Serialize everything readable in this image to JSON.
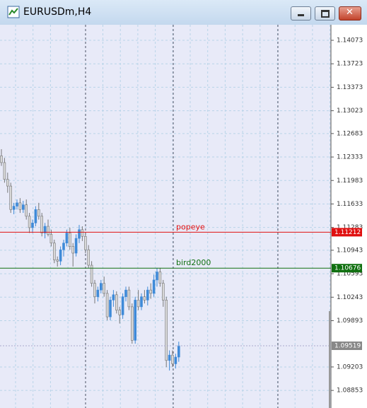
{
  "window": {
    "title": "EURUSDm,H4"
  },
  "chart_data": {
    "type": "candlestick",
    "open": [
      1.1235,
      1.1225,
      1.12,
      1.119,
      1.1155,
      1.116,
      1.1165,
      1.1155,
      1.1162,
      1.1145,
      1.1128,
      1.1135,
      1.1155,
      1.1145,
      1.112,
      1.113,
      1.1118,
      1.1105,
      1.108,
      1.1078,
      1.1095,
      1.1105,
      1.112,
      1.11,
      1.109,
      1.1112,
      1.1125,
      1.1115,
      1.1095,
      1.1072,
      1.1045,
      1.1025,
      1.1035,
      1.1045,
      1.103,
      1.0995,
      1.102,
      1.1028,
      1.1005,
      1.0998,
      1.1025,
      1.1035,
      1.101,
      1.096,
      1.102,
      1.101,
      1.1025,
      1.102,
      1.1035,
      1.103,
      1.105,
      1.1062,
      1.1045,
      1.102,
      1.093,
      1.0938,
      1.0925,
      1.0935
    ],
    "high": [
      1.1245,
      1.1232,
      1.121,
      1.1195,
      1.1165,
      1.117,
      1.1172,
      1.1168,
      1.117,
      1.115,
      1.114,
      1.116,
      1.1165,
      1.115,
      1.1135,
      1.114,
      1.1125,
      1.111,
      1.1085,
      1.11,
      1.111,
      1.1125,
      1.1128,
      1.1105,
      1.1118,
      1.1132,
      1.113,
      1.112,
      1.1102,
      1.1078,
      1.105,
      1.104,
      1.105,
      1.1055,
      1.1035,
      1.1025,
      1.1035,
      1.1033,
      1.101,
      1.103,
      1.104,
      1.104,
      1.1015,
      1.1025,
      1.1035,
      1.103,
      1.1035,
      1.104,
      1.1045,
      1.1058,
      1.1068,
      1.1068,
      1.105,
      1.1025,
      1.0945,
      1.0945,
      1.094,
      1.0958
    ],
    "low": [
      1.122,
      1.1195,
      1.118,
      1.115,
      1.1148,
      1.1155,
      1.115,
      1.115,
      1.114,
      1.112,
      1.112,
      1.113,
      1.114,
      1.1115,
      1.1112,
      1.1115,
      1.11,
      1.1075,
      1.107,
      1.1072,
      1.1085,
      1.11,
      1.1095,
      1.107,
      1.1085,
      1.1105,
      1.1108,
      1.109,
      1.1068,
      1.104,
      1.1015,
      1.1018,
      1.103,
      1.1025,
      1.099,
      1.099,
      1.101,
      1.1,
      1.0985,
      1.0992,
      1.1018,
      1.1005,
      1.0955,
      1.0955,
      1.1005,
      1.1005,
      1.1015,
      1.1012,
      1.1022,
      1.1025,
      1.104,
      1.104,
      1.101,
      1.092,
      1.0915,
      1.092,
      1.0918,
      1.0928
    ],
    "close": [
      1.1225,
      1.12,
      1.119,
      1.1155,
      1.116,
      1.1165,
      1.1155,
      1.1162,
      1.1145,
      1.1128,
      1.1135,
      1.1155,
      1.1145,
      1.112,
      1.113,
      1.1118,
      1.1105,
      1.108,
      1.1078,
      1.1095,
      1.1105,
      1.112,
      1.11,
      1.109,
      1.1112,
      1.1125,
      1.1115,
      1.1095,
      1.1072,
      1.1045,
      1.1025,
      1.1035,
      1.1045,
      1.103,
      1.0995,
      1.102,
      1.1028,
      1.1005,
      1.0998,
      1.1025,
      1.1035,
      1.101,
      1.096,
      1.102,
      1.101,
      1.1025,
      1.102,
      1.1035,
      1.103,
      1.105,
      1.1062,
      1.1045,
      1.102,
      1.093,
      1.0938,
      1.0925,
      1.0935,
      1.0952
    ],
    "up_color": "#3f8ad8",
    "down_color": "#d8d8d8",
    "ylim": [
      1.08591,
      1.14305
    ],
    "yticks": [
      1.14073,
      1.13723,
      1.13373,
      1.13023,
      1.12683,
      1.12333,
      1.11983,
      1.11633,
      1.11283,
      1.10943,
      1.10593,
      1.10243,
      1.09893,
      1.09203,
      1.08853
    ],
    "grid": true,
    "lines": [
      {
        "name": "popeye",
        "value": 1.11212,
        "color": "#e01010"
      },
      {
        "name": "bird2000",
        "value": 1.10676,
        "color": "#107010"
      }
    ],
    "current_price": 1.09519
  }
}
